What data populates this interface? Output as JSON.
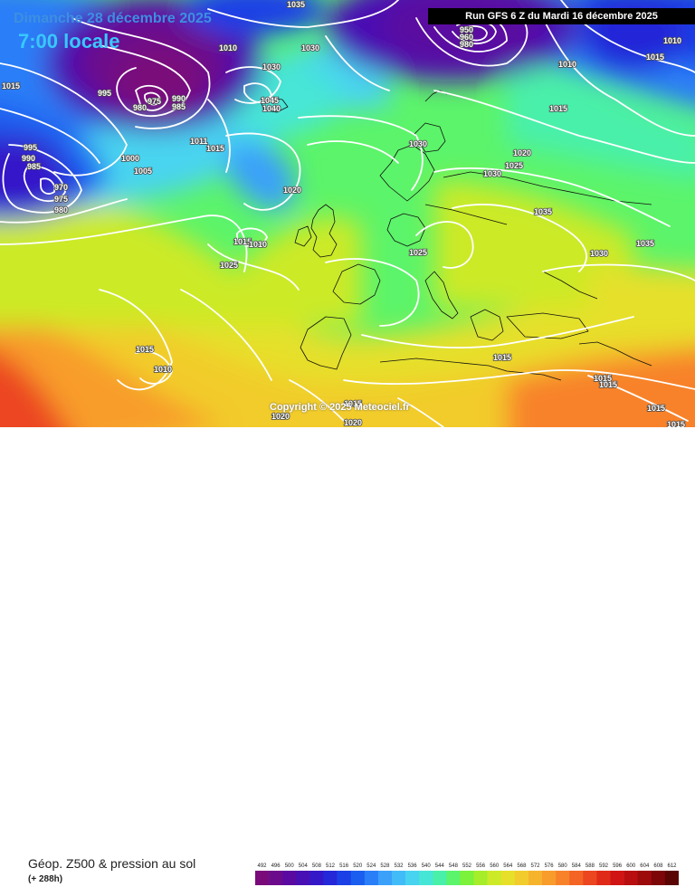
{
  "header": {
    "date": "Dimanche 28 décembre 2025",
    "time": "7:00 locale",
    "run": "Run GFS 6 Z du Mardi 16 décembre 2025"
  },
  "copyright": "Copyright © 2025 Meteociel.fr",
  "footer": {
    "product": "Géop. Z500 & pression au sol",
    "lead_time": "(+ 288h)"
  },
  "legend": {
    "values": [
      "492",
      "496",
      "500",
      "504",
      "508",
      "512",
      "516",
      "520",
      "524",
      "528",
      "532",
      "536",
      "540",
      "544",
      "548",
      "552",
      "556",
      "560",
      "564",
      "568",
      "572",
      "576",
      "580",
      "584",
      "588",
      "592",
      "596",
      "600",
      "604",
      "608",
      "612"
    ],
    "colors": [
      "#7a0a7a",
      "#6c0a8c",
      "#5a0aa0",
      "#4810b4",
      "#3418c8",
      "#2428d8",
      "#1a40e6",
      "#1a5ef0",
      "#2a7ef8",
      "#3aa0fa",
      "#42bcf8",
      "#48d4f0",
      "#46e6d6",
      "#48f0aa",
      "#5cf46a",
      "#7cf23a",
      "#a6ee2a",
      "#ccea28",
      "#e6e02a",
      "#f2cc2c",
      "#f6b42c",
      "#f89c2c",
      "#f8822a",
      "#f46424",
      "#ec4620",
      "#e02a18",
      "#d01414",
      "#b80e10",
      "#9c0a0c",
      "#7c0608",
      "#5a0404"
    ]
  },
  "map": {
    "isobar_labels": [
      {
        "text": "1035"
      },
      {
        "text": "1010"
      },
      {
        "text": "1030"
      },
      {
        "text": "1010"
      },
      {
        "text": "1030"
      },
      {
        "text": "995"
      },
      {
        "text": "975"
      },
      {
        "text": "980"
      },
      {
        "text": "990"
      },
      {
        "text": "985"
      },
      {
        "text": "1045"
      },
      {
        "text": "1040"
      },
      {
        "text": "1015"
      },
      {
        "text": "1011"
      },
      {
        "text": "1015"
      },
      {
        "text": "995"
      },
      {
        "text": "990"
      },
      {
        "text": "985"
      },
      {
        "text": "1000"
      },
      {
        "text": "1005"
      },
      {
        "text": "970"
      },
      {
        "text": "975"
      },
      {
        "text": "980"
      },
      {
        "text": "1020"
      },
      {
        "text": "1015"
      },
      {
        "text": "1010"
      },
      {
        "text": "1025"
      },
      {
        "text": "1030"
      },
      {
        "text": "1020"
      },
      {
        "text": "1025"
      },
      {
        "text": "1030"
      },
      {
        "text": "1035"
      },
      {
        "text": "1025"
      },
      {
        "text": "1030"
      },
      {
        "text": "1035"
      },
      {
        "text": "1015"
      },
      {
        "text": "1015"
      },
      {
        "text": "1010"
      },
      {
        "text": "1015"
      },
      {
        "text": "1015"
      },
      {
        "text": "1015"
      },
      {
        "text": "1020"
      },
      {
        "text": "1020"
      },
      {
        "text": "950"
      },
      {
        "text": "960"
      },
      {
        "text": "980"
      },
      {
        "text": "1010"
      },
      {
        "text": "1015"
      },
      {
        "text": "1015"
      },
      {
        "text": "1015"
      },
      {
        "text": "1015"
      }
    ]
  }
}
